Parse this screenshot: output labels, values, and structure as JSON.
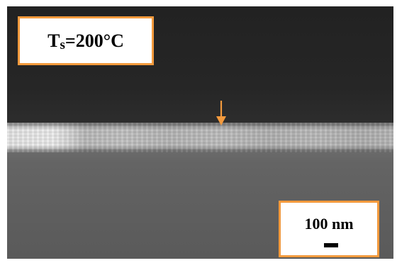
{
  "image": {
    "kind": "cross-section electron micrograph",
    "colors": {
      "accent": "#f39a3d",
      "background_top": "#242424",
      "film": "#c0c0c0",
      "substrate": "#606060"
    }
  },
  "annotations": {
    "temperature_label": {
      "prefix": "T",
      "subscript": "s",
      "suffix": "=200°C"
    },
    "scale_bar": {
      "label": "100 nm"
    },
    "arrow": {
      "icon": "arrow-down-icon",
      "color": "#f39a3d"
    }
  }
}
